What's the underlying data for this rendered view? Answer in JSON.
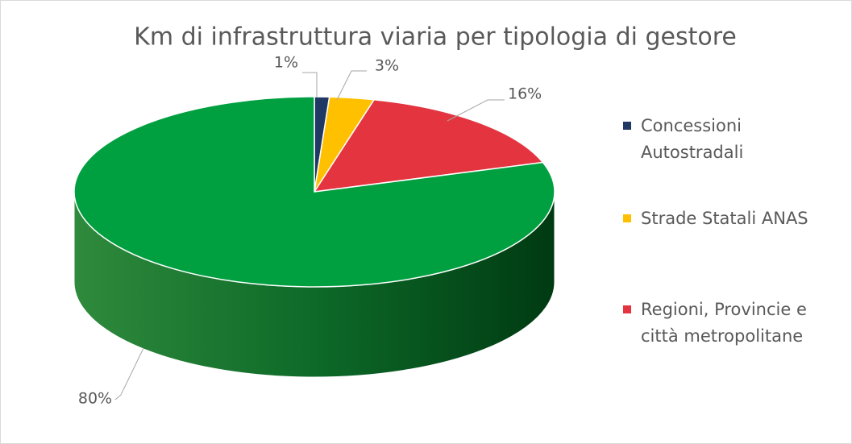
{
  "chart_data": {
    "type": "pie3d",
    "title": "Km di infrastruttura viaria per tipologia di gestore",
    "categories": [
      "Concessioni Autostradali",
      "Strade Statali ANAS",
      "Regioni, Provincie e città metropolitane",
      null
    ],
    "values": [
      1,
      3,
      16,
      80
    ],
    "value_labels": [
      "1%",
      "3%",
      "16%",
      "80%"
    ],
    "colors": [
      "#1f3864",
      "#ffc000",
      "#e3343f",
      "#00a040"
    ],
    "legend": "right"
  }
}
